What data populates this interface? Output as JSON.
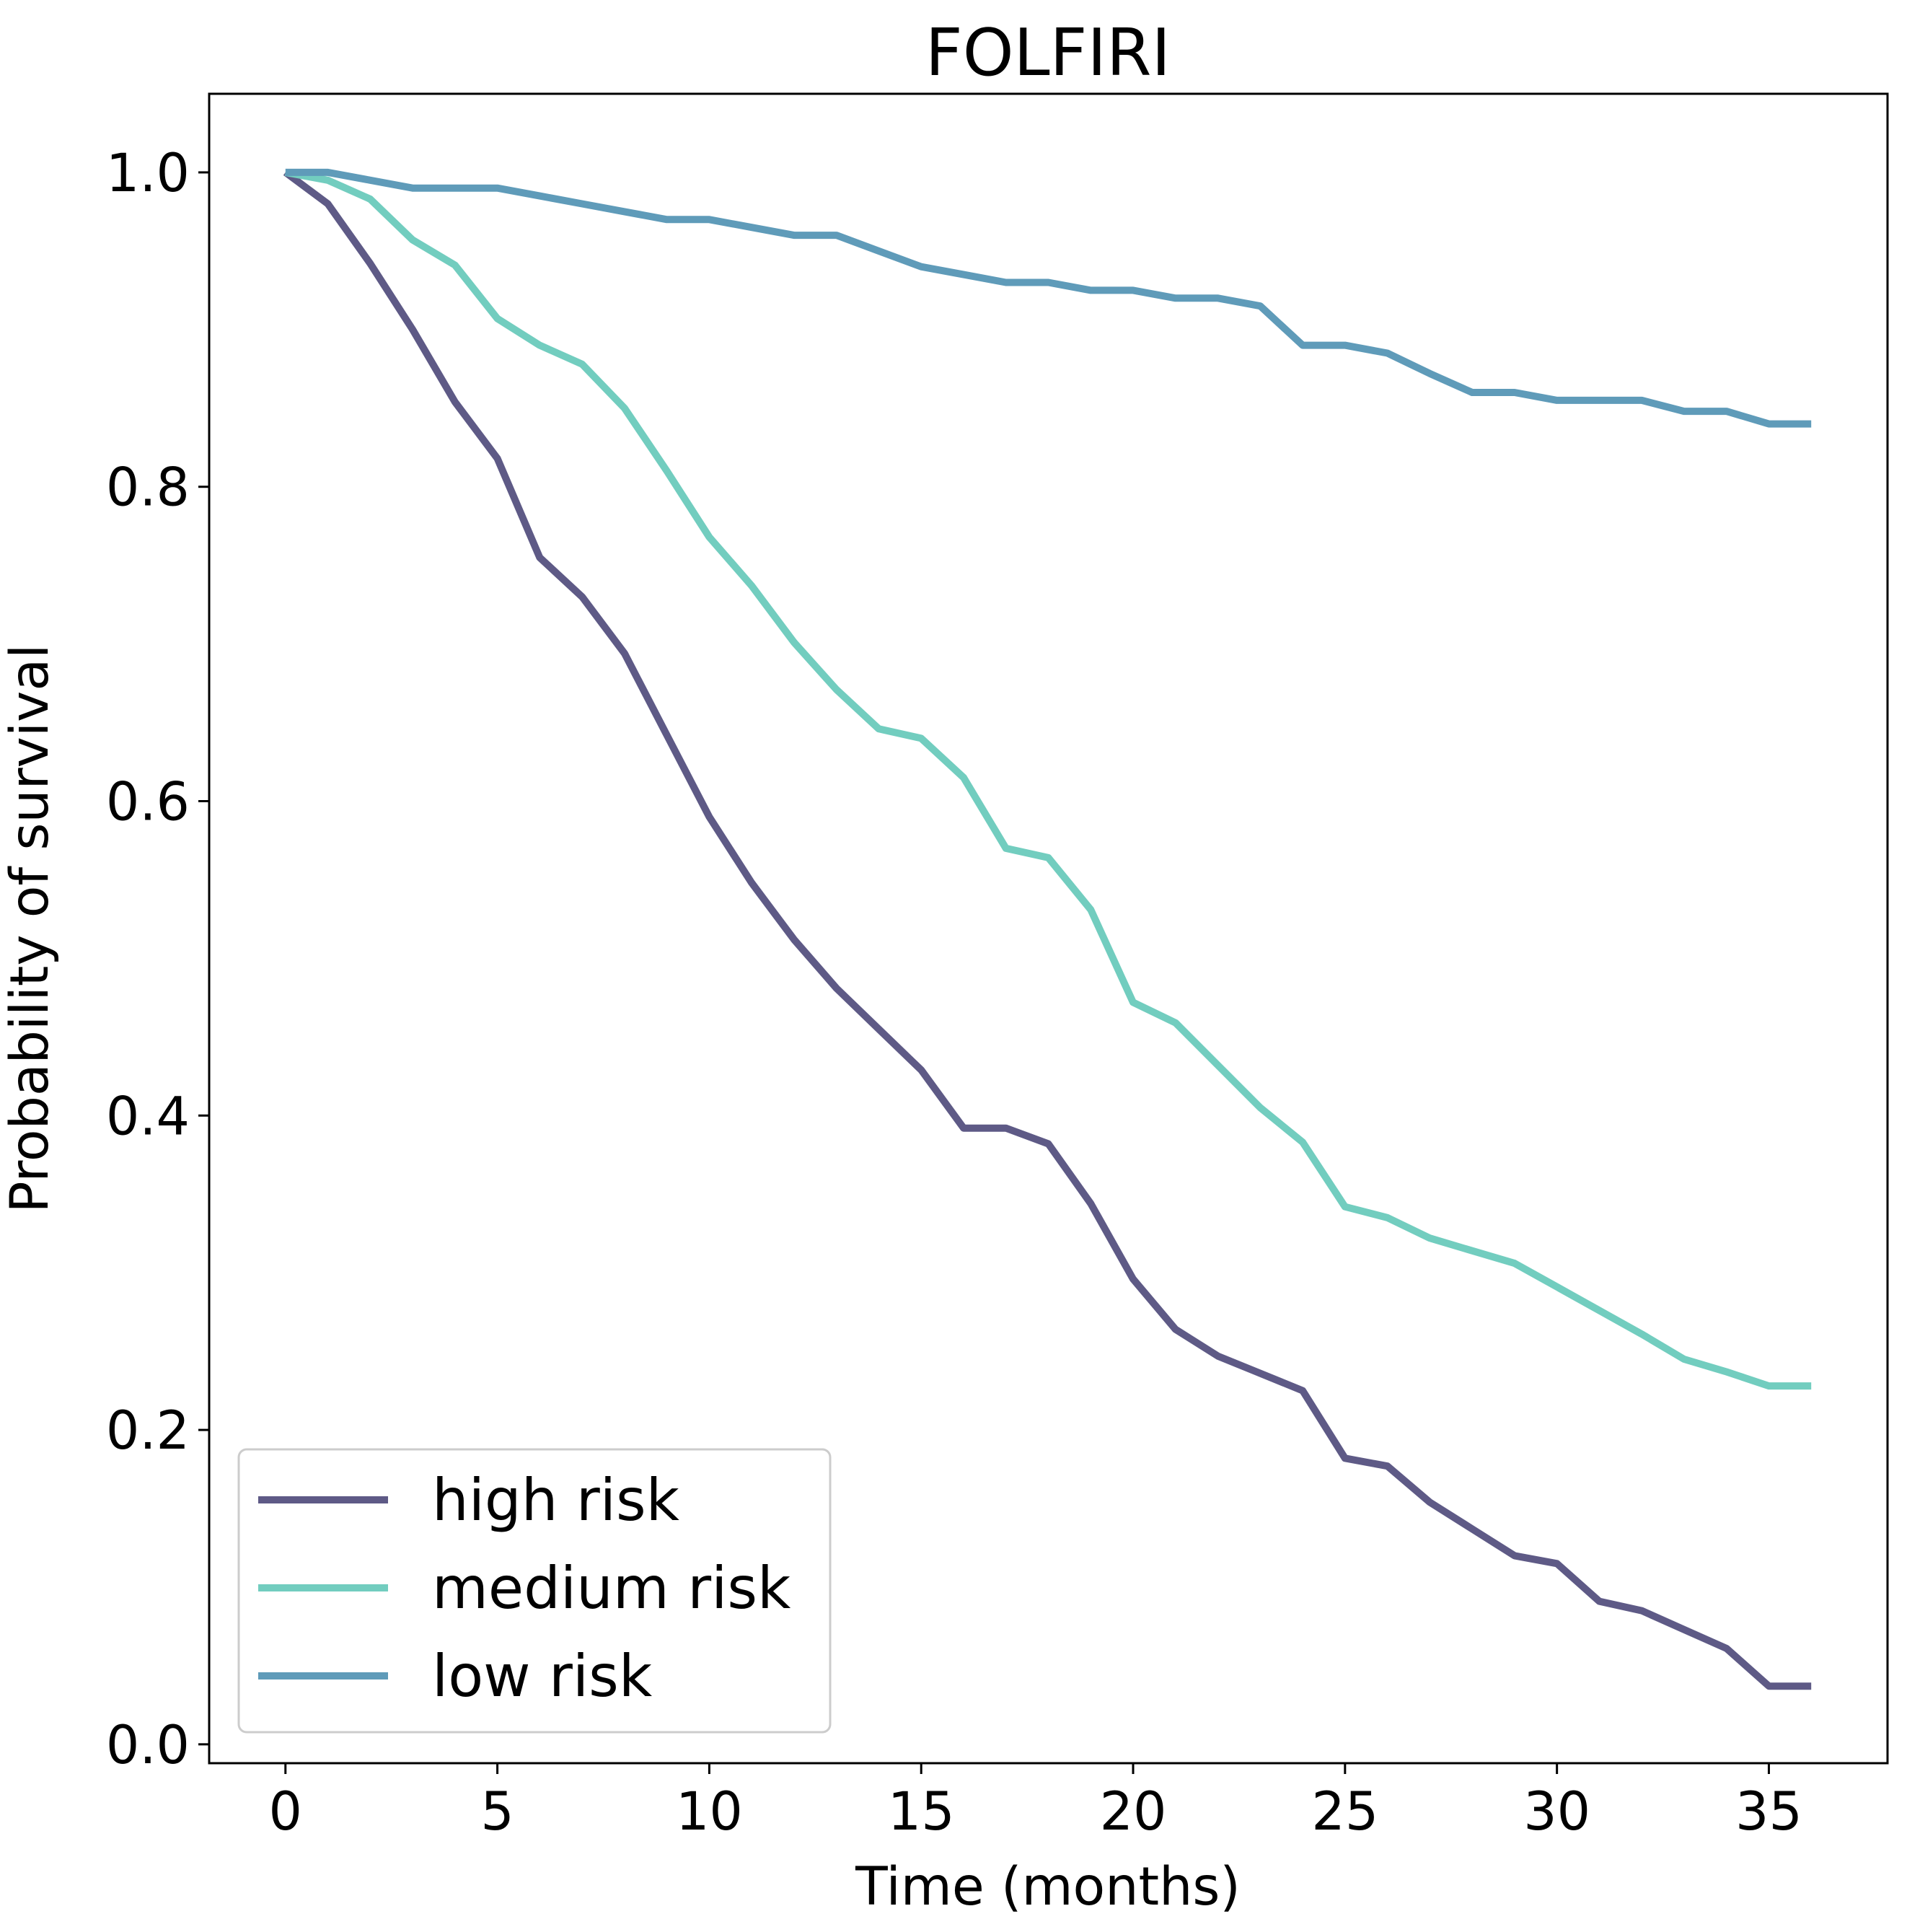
{
  "chart_data": {
    "type": "line",
    "title": "FOLFIRI",
    "xlabel": "Time (months)",
    "ylabel": "Probability of survival",
    "xlim": [
      -1.8,
      37.8
    ],
    "ylim": [
      -0.012,
      1.05
    ],
    "xticks": [
      0,
      5,
      10,
      15,
      20,
      25,
      30,
      35
    ],
    "xtick_labels": [
      "0",
      "5",
      "10",
      "15",
      "20",
      "25",
      "30",
      "35"
    ],
    "yticks": [
      0.0,
      0.2,
      0.4,
      0.6,
      0.8,
      1.0
    ],
    "ytick_labels": [
      "0.0",
      "0.2",
      "0.4",
      "0.6",
      "0.8",
      "1.0"
    ],
    "grid": false,
    "legend_position": "lower-left",
    "series": [
      {
        "name": "high risk",
        "color": "#5e5a86",
        "x": [
          0,
          1,
          2,
          3,
          4,
          5,
          6,
          7,
          8,
          9,
          10,
          11,
          12,
          13,
          14,
          15,
          16,
          17,
          18,
          19,
          20,
          21,
          22,
          23,
          24,
          25,
          26,
          27,
          28,
          29,
          30,
          31,
          32,
          33,
          34,
          35,
          36
        ],
        "y": [
          1.0,
          0.98,
          0.942,
          0.9,
          0.854,
          0.818,
          0.755,
          0.73,
          0.694,
          0.642,
          0.59,
          0.548,
          0.512,
          0.481,
          0.455,
          0.429,
          0.392,
          0.392,
          0.382,
          0.344,
          0.296,
          0.264,
          0.247,
          0.236,
          0.225,
          0.182,
          0.177,
          0.154,
          0.137,
          0.12,
          0.115,
          0.091,
          0.085,
          0.073,
          0.061,
          0.037,
          0.037
        ]
      },
      {
        "name": "medium risk",
        "color": "#72cdbf",
        "x": [
          0,
          1,
          2,
          3,
          4,
          5,
          6,
          7,
          8,
          9,
          10,
          11,
          12,
          13,
          14,
          15,
          16,
          17,
          18,
          19,
          20,
          21,
          22,
          23,
          24,
          25,
          26,
          27,
          28,
          29,
          30,
          31,
          32,
          33,
          34,
          35,
          36
        ],
        "y": [
          1.0,
          0.995,
          0.983,
          0.957,
          0.941,
          0.907,
          0.89,
          0.878,
          0.85,
          0.81,
          0.768,
          0.737,
          0.701,
          0.671,
          0.646,
          0.64,
          0.615,
          0.57,
          0.564,
          0.531,
          0.472,
          0.459,
          0.432,
          0.405,
          0.383,
          0.342,
          0.335,
          0.322,
          0.314,
          0.306,
          0.291,
          0.276,
          0.261,
          0.245,
          0.237,
          0.228,
          0.228
        ]
      },
      {
        "name": "low risk",
        "color": "#5f9bb9",
        "x": [
          0,
          1,
          2,
          3,
          4,
          5,
          6,
          7,
          8,
          9,
          10,
          11,
          12,
          13,
          14,
          15,
          16,
          17,
          18,
          19,
          20,
          21,
          22,
          23,
          24,
          25,
          26,
          27,
          28,
          29,
          30,
          31,
          32,
          33,
          34,
          35,
          36
        ],
        "y": [
          1.0,
          1.0,
          0.995,
          0.99,
          0.99,
          0.99,
          0.985,
          0.98,
          0.975,
          0.97,
          0.97,
          0.965,
          0.96,
          0.96,
          0.95,
          0.94,
          0.935,
          0.93,
          0.93,
          0.925,
          0.925,
          0.92,
          0.92,
          0.915,
          0.89,
          0.89,
          0.885,
          0.872,
          0.86,
          0.86,
          0.855,
          0.855,
          0.855,
          0.848,
          0.848,
          0.84,
          0.84
        ]
      }
    ]
  }
}
